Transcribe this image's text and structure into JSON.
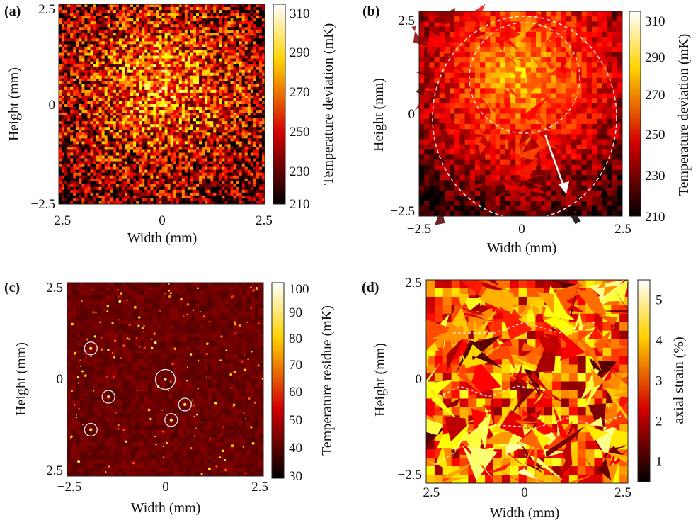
{
  "chart_data": [
    {
      "panel": "(a)",
      "type": "heatmap",
      "xlabel": "Width (mm)",
      "ylabel": "Height (mm)",
      "xlim": [
        -2.5,
        2.5
      ],
      "ylim": [
        -2.5,
        2.5
      ],
      "xticks": [
        "−2.5",
        "0",
        "2.5"
      ],
      "yticks": [
        "2.5",
        "0",
        "−2.5"
      ],
      "colorbar": {
        "label": "Temperature deviation (mK)",
        "range": [
          210,
          310
        ],
        "ticks": [
          "310",
          "290",
          "270",
          "250",
          "230",
          "210"
        ],
        "colormap": "hot"
      },
      "pattern": "fine-grained noise, hot center"
    },
    {
      "panel": "(b)",
      "type": "heatmap",
      "xlabel": "Width (mm)",
      "ylabel": "Height (mm)",
      "xlim": [
        -2.5,
        2.5
      ],
      "ylim": [
        -2.5,
        2.5
      ],
      "xticks": [
        "−2.5",
        "0",
        "2.5"
      ],
      "yticks": [
        "2.5",
        "0",
        "−2.5"
      ],
      "colorbar": {
        "label": "Temperature deviation (mK)",
        "range": [
          210,
          310
        ],
        "ticks": [
          "310",
          "290",
          "270",
          "250",
          "230",
          "210"
        ],
        "colormap": "hot"
      },
      "pattern": "polygonal grains with large dashed ellipse, inner dashed circle and arrow"
    },
    {
      "panel": "(c)",
      "type": "heatmap",
      "xlabel": "Width (mm)",
      "ylabel": "Height (mm)",
      "xlim": [
        -2.5,
        2.5
      ],
      "ylim": [
        -2.5,
        2.5
      ],
      "xticks": [
        "−2.5",
        "0",
        "2.5"
      ],
      "yticks": [
        "2.5",
        "0",
        "−2.5"
      ],
      "colorbar": {
        "label": "Temperature residue (mK)",
        "range": [
          30,
          100
        ],
        "ticks": [
          "100",
          "90",
          "80",
          "70",
          "60",
          "50",
          "40",
          "30"
        ],
        "colormap": "hot"
      },
      "pattern": "dark background with sparse hot spots, 6 circled",
      "circled_spots": [
        {
          "x": -1.9,
          "y": 0.8
        },
        {
          "x": -1.45,
          "y": -0.45
        },
        {
          "x": 0.0,
          "y": 0.0
        },
        {
          "x": 0.5,
          "y": -0.65
        },
        {
          "x": 0.15,
          "y": -1.05
        },
        {
          "x": -1.9,
          "y": -1.3
        }
      ]
    },
    {
      "panel": "(d)",
      "type": "heatmap",
      "xlabel": "Width (mm)",
      "ylabel": "Height (mm)",
      "xlim": [
        -2.5,
        2.5
      ],
      "ylim": [
        -2.5,
        2.5
      ],
      "xticks": [
        "−2.5",
        "0",
        "2.5"
      ],
      "yticks": [
        "2.5",
        "0",
        "−2.5"
      ],
      "colorbar": {
        "label": "axial strain (%)",
        "range": [
          0.5,
          5.5
        ],
        "ticks": [
          "5",
          "4",
          "3",
          "2",
          "1"
        ],
        "tick_values": [
          5,
          4,
          3,
          2,
          1
        ],
        "colormap": "hot"
      },
      "pattern": "polygonal grains with dashed grain-boundary traces"
    }
  ]
}
